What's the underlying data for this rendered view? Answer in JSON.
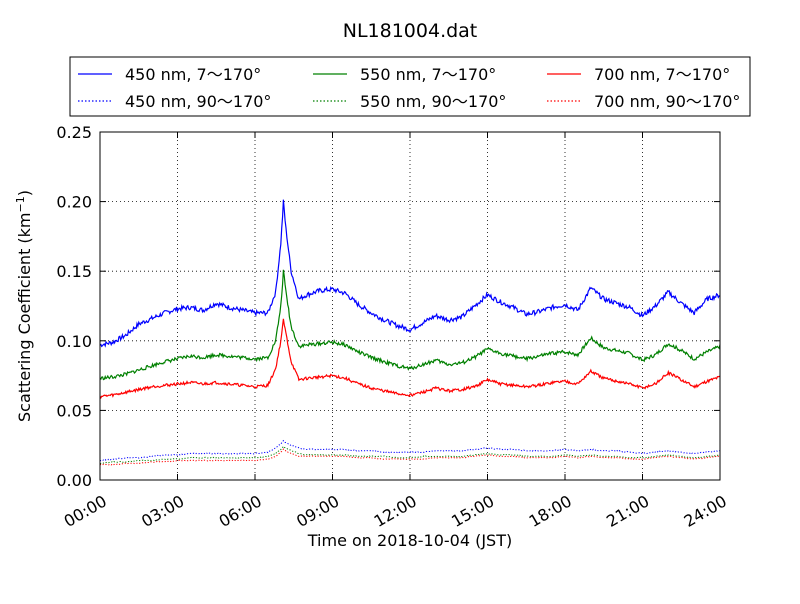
{
  "chart_data": {
    "type": "line",
    "title": "NL181004.dat",
    "xlabel": "Time on 2018-10-04 (JST)",
    "ylabel": "Scattering Coefficient (km",
    "ylabel_sup": "−1",
    "ylabel_end": ")",
    "xlim_hours": [
      0,
      24
    ],
    "ylim": [
      0,
      0.25
    ],
    "grid": true,
    "legend_placement": "top (above plot, 3 columns)",
    "x_ticks": [
      "00:00",
      "03:00",
      "06:00",
      "09:00",
      "12:00",
      "15:00",
      "18:00",
      "21:00",
      "24:00"
    ],
    "x_tick_hours": [
      0,
      3,
      6,
      9,
      12,
      15,
      18,
      21,
      24
    ],
    "y_ticks": [
      "0.00",
      "0.05",
      "0.10",
      "0.15",
      "0.20",
      "0.25"
    ],
    "y_tick_values": [
      0,
      0.05,
      0.1,
      0.15,
      0.2,
      0.25
    ],
    "series_hours": [
      0,
      0.5,
      1,
      1.5,
      2,
      2.5,
      3,
      3.5,
      4,
      4.5,
      5,
      5.5,
      6,
      6.5,
      6.8,
      7,
      7.1,
      7.2,
      7.4,
      7.7,
      8,
      8.5,
      9,
      9.5,
      10,
      10.5,
      11,
      11.5,
      12,
      12.5,
      13,
      13.5,
      14,
      14.5,
      15,
      15.5,
      16,
      16.5,
      17,
      17.5,
      18,
      18.5,
      19,
      19.5,
      20,
      20.5,
      21,
      21.5,
      22,
      22.5,
      23,
      23.5,
      24
    ],
    "series": [
      {
        "name": "450 nm, 7～170°",
        "color": "#0000ff",
        "style": "solid",
        "values": [
          0.097,
          0.099,
          0.104,
          0.112,
          0.116,
          0.12,
          0.123,
          0.124,
          0.122,
          0.127,
          0.124,
          0.122,
          0.12,
          0.12,
          0.135,
          0.17,
          0.2,
          0.18,
          0.15,
          0.13,
          0.133,
          0.136,
          0.137,
          0.134,
          0.126,
          0.12,
          0.115,
          0.111,
          0.108,
          0.113,
          0.118,
          0.115,
          0.117,
          0.125,
          0.133,
          0.128,
          0.124,
          0.119,
          0.121,
          0.124,
          0.126,
          0.122,
          0.138,
          0.13,
          0.127,
          0.124,
          0.118,
          0.125,
          0.135,
          0.127,
          0.12,
          0.13,
          0.133
        ]
      },
      {
        "name": "450 nm, 90～170°",
        "color": "#0000ff",
        "style": "dotted",
        "values": [
          0.014,
          0.015,
          0.016,
          0.016,
          0.017,
          0.018,
          0.018,
          0.019,
          0.019,
          0.019,
          0.019,
          0.019,
          0.019,
          0.02,
          0.023,
          0.026,
          0.028,
          0.027,
          0.025,
          0.023,
          0.022,
          0.022,
          0.022,
          0.022,
          0.021,
          0.021,
          0.02,
          0.02,
          0.02,
          0.02,
          0.021,
          0.021,
          0.021,
          0.022,
          0.023,
          0.022,
          0.022,
          0.021,
          0.021,
          0.021,
          0.022,
          0.021,
          0.022,
          0.021,
          0.021,
          0.02,
          0.019,
          0.02,
          0.021,
          0.02,
          0.019,
          0.02,
          0.021
        ]
      },
      {
        "name": "550 nm, 7～170°",
        "color": "#008000",
        "style": "solid",
        "values": [
          0.073,
          0.074,
          0.076,
          0.079,
          0.082,
          0.085,
          0.087,
          0.089,
          0.088,
          0.09,
          0.089,
          0.088,
          0.087,
          0.088,
          0.1,
          0.125,
          0.15,
          0.135,
          0.11,
          0.096,
          0.097,
          0.098,
          0.099,
          0.097,
          0.092,
          0.088,
          0.085,
          0.082,
          0.08,
          0.083,
          0.086,
          0.083,
          0.084,
          0.088,
          0.094,
          0.091,
          0.089,
          0.087,
          0.089,
          0.091,
          0.092,
          0.09,
          0.102,
          0.095,
          0.093,
          0.091,
          0.086,
          0.09,
          0.098,
          0.093,
          0.087,
          0.092,
          0.096
        ]
      },
      {
        "name": "550 nm, 90～170°",
        "color": "#008000",
        "style": "dotted",
        "values": [
          0.012,
          0.013,
          0.013,
          0.014,
          0.014,
          0.015,
          0.015,
          0.016,
          0.016,
          0.016,
          0.016,
          0.016,
          0.016,
          0.017,
          0.019,
          0.022,
          0.024,
          0.023,
          0.021,
          0.019,
          0.018,
          0.018,
          0.018,
          0.018,
          0.017,
          0.017,
          0.017,
          0.016,
          0.016,
          0.017,
          0.017,
          0.017,
          0.017,
          0.018,
          0.019,
          0.018,
          0.018,
          0.017,
          0.017,
          0.017,
          0.018,
          0.017,
          0.018,
          0.017,
          0.017,
          0.016,
          0.016,
          0.017,
          0.018,
          0.017,
          0.016,
          0.017,
          0.018
        ]
      },
      {
        "name": "700 nm, 7～170°",
        "color": "#ff0000",
        "style": "solid",
        "values": [
          0.06,
          0.061,
          0.063,
          0.065,
          0.067,
          0.068,
          0.069,
          0.07,
          0.069,
          0.07,
          0.069,
          0.068,
          0.067,
          0.068,
          0.08,
          0.1,
          0.115,
          0.105,
          0.085,
          0.072,
          0.073,
          0.074,
          0.075,
          0.073,
          0.069,
          0.066,
          0.064,
          0.062,
          0.061,
          0.063,
          0.066,
          0.064,
          0.065,
          0.067,
          0.072,
          0.069,
          0.068,
          0.067,
          0.068,
          0.07,
          0.071,
          0.069,
          0.078,
          0.073,
          0.071,
          0.069,
          0.066,
          0.069,
          0.077,
          0.072,
          0.067,
          0.071,
          0.074
        ]
      },
      {
        "name": "700 nm, 90～170°",
        "color": "#ff0000",
        "style": "dotted",
        "values": [
          0.011,
          0.011,
          0.012,
          0.012,
          0.013,
          0.013,
          0.014,
          0.014,
          0.014,
          0.014,
          0.014,
          0.014,
          0.014,
          0.015,
          0.017,
          0.02,
          0.022,
          0.021,
          0.019,
          0.017,
          0.017,
          0.017,
          0.017,
          0.017,
          0.016,
          0.016,
          0.015,
          0.015,
          0.015,
          0.015,
          0.016,
          0.016,
          0.016,
          0.017,
          0.018,
          0.017,
          0.017,
          0.016,
          0.016,
          0.016,
          0.017,
          0.016,
          0.017,
          0.016,
          0.016,
          0.015,
          0.015,
          0.016,
          0.017,
          0.016,
          0.015,
          0.016,
          0.017
        ]
      }
    ]
  }
}
